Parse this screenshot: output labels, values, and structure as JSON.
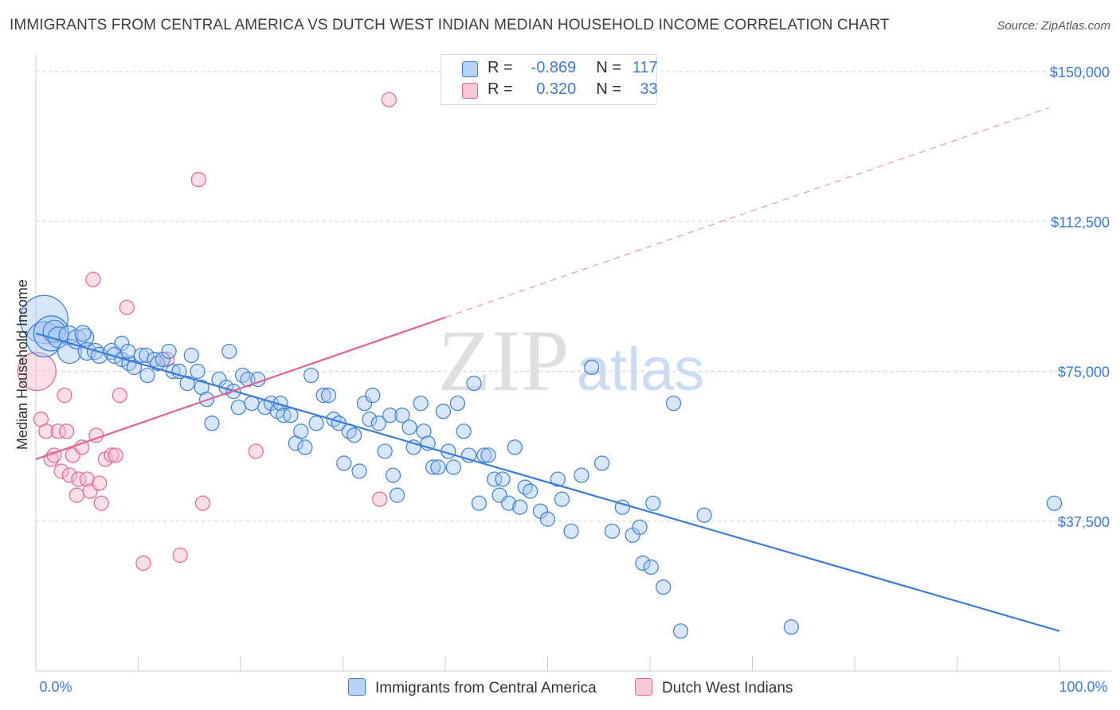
{
  "title": "IMMIGRANTS FROM CENTRAL AMERICA VS DUTCH WEST INDIAN MEDIAN HOUSEHOLD INCOME CORRELATION CHART",
  "source": "Source: ZipAtlas.com",
  "watermark": {
    "zip": "ZIP",
    "atlas": "atlas"
  },
  "colors": {
    "blue": "#3b7dd8",
    "blue_fill": "#a9c8f2",
    "pink": "#e3648f",
    "pink_fill": "#f5b8cb",
    "axis_label": "#3b7dd8",
    "grid": "#cfcfcf"
  },
  "legend": {
    "rows": [
      {
        "r_label": "R =",
        "r_value": "-0.869",
        "n_label": "N =",
        "n_value": "117"
      },
      {
        "r_label": "R =",
        "r_value": "0.320",
        "n_label": "N =",
        "n_value": "33"
      }
    ]
  },
  "bottom_legend": {
    "series1": "Immigrants from Central America",
    "series2": "Dutch West Indians"
  },
  "chart_data": {
    "type": "scatter",
    "title": "IMMIGRANTS FROM CENTRAL AMERICA VS DUTCH WEST INDIAN MEDIAN HOUSEHOLD INCOME CORRELATION CHART",
    "xlabel": "",
    "ylabel": "Median Household Income",
    "xlim": [
      0,
      100
    ],
    "ylim": [
      0,
      153000
    ],
    "x_tick_labels": [
      "0.0%",
      "100.0%"
    ],
    "y_ticks": [
      37500,
      75000,
      112500,
      150000
    ],
    "y_tick_labels": [
      "$37,500",
      "$75,000",
      "$112,500",
      "$150,000"
    ],
    "grid": true,
    "legend_position": "top-center",
    "series": [
      {
        "name": "Immigrants from Central America",
        "color": "#3b7dd8",
        "R": -0.869,
        "N": 117,
        "trend": {
          "x": [
            0,
            100
          ],
          "y": [
            84500,
            10000
          ]
        },
        "points": [
          [
            0.8,
            88000,
            30
          ],
          [
            0.8,
            83000,
            22
          ],
          [
            1.5,
            84500,
            22
          ],
          [
            1.8,
            85000,
            14
          ],
          [
            2.2,
            83500,
            13
          ],
          [
            3.2,
            84000,
            12
          ],
          [
            3.3,
            80000,
            15
          ],
          [
            4.0,
            83000,
            12
          ],
          [
            4.8,
            83500,
            11
          ],
          [
            4.6,
            84500,
            10
          ],
          [
            5.0,
            80000,
            11
          ],
          [
            5.8,
            80000,
            10
          ],
          [
            6.2,
            79000,
            10
          ],
          [
            7.4,
            80000,
            10
          ],
          [
            7.7,
            79000,
            10
          ],
          [
            8.4,
            78000,
            9
          ],
          [
            8.4,
            82000,
            9
          ],
          [
            9.1,
            77000,
            9
          ],
          [
            9.0,
            80000,
            9
          ],
          [
            9.6,
            76000,
            9
          ],
          [
            10.3,
            79000,
            9
          ],
          [
            10.8,
            79000,
            9
          ],
          [
            10.9,
            74000,
            9
          ],
          [
            11.6,
            78000,
            9
          ],
          [
            11.9,
            77000,
            9
          ],
          [
            12.4,
            78000,
            9
          ],
          [
            13.0,
            80000,
            9
          ],
          [
            13.4,
            75000,
            9
          ],
          [
            14.0,
            75000,
            9
          ],
          [
            14.8,
            72000,
            9
          ],
          [
            15.2,
            79000,
            9
          ],
          [
            15.8,
            75000,
            9
          ],
          [
            16.2,
            71000,
            9
          ],
          [
            16.7,
            68000,
            9
          ],
          [
            17.2,
            62000,
            9
          ],
          [
            17.9,
            73000,
            9
          ],
          [
            18.6,
            71000,
            9
          ],
          [
            18.9,
            80000,
            9
          ],
          [
            19.3,
            70000,
            9
          ],
          [
            19.8,
            66000,
            9
          ],
          [
            20.2,
            74000,
            9
          ],
          [
            20.7,
            73000,
            9
          ],
          [
            21.1,
            67000,
            9
          ],
          [
            21.7,
            73000,
            9
          ],
          [
            22.4,
            66000,
            9
          ],
          [
            23.0,
            67000,
            9
          ],
          [
            23.6,
            65000,
            9
          ],
          [
            23.9,
            67000,
            9
          ],
          [
            24.2,
            64000,
            9
          ],
          [
            24.9,
            64000,
            9
          ],
          [
            25.4,
            57000,
            9
          ],
          [
            25.9,
            60000,
            9
          ],
          [
            26.3,
            56000,
            9
          ],
          [
            26.9,
            74000,
            9
          ],
          [
            27.4,
            62000,
            9
          ],
          [
            28.1,
            69000,
            9
          ],
          [
            28.6,
            69000,
            9
          ],
          [
            29.1,
            63000,
            9
          ],
          [
            29.6,
            62000,
            9
          ],
          [
            30.1,
            52000,
            9
          ],
          [
            30.6,
            60000,
            9
          ],
          [
            31.1,
            59000,
            9
          ],
          [
            31.6,
            50000,
            9
          ],
          [
            32.1,
            67000,
            9
          ],
          [
            32.6,
            63000,
            9
          ],
          [
            32.9,
            69000,
            9
          ],
          [
            33.5,
            62000,
            9
          ],
          [
            34.1,
            55000,
            9
          ],
          [
            34.6,
            64000,
            9
          ],
          [
            34.9,
            49000,
            9
          ],
          [
            35.3,
            44000,
            9
          ],
          [
            35.8,
            64000,
            9
          ],
          [
            36.5,
            61000,
            9
          ],
          [
            36.9,
            56000,
            9
          ],
          [
            37.6,
            67000,
            9
          ],
          [
            37.9,
            60000,
            9
          ],
          [
            38.3,
            57000,
            9
          ],
          [
            38.8,
            51000,
            9
          ],
          [
            39.3,
            51000,
            9
          ],
          [
            39.8,
            65000,
            9
          ],
          [
            40.3,
            55000,
            9
          ],
          [
            40.8,
            51000,
            9
          ],
          [
            41.2,
            67000,
            9
          ],
          [
            41.8,
            60000,
            9
          ],
          [
            42.3,
            54000,
            9
          ],
          [
            42.8,
            72000,
            9
          ],
          [
            43.3,
            42000,
            9
          ],
          [
            43.8,
            54000,
            9
          ],
          [
            44.2,
            54000,
            9
          ],
          [
            44.8,
            48000,
            9
          ],
          [
            45.3,
            44000,
            9
          ],
          [
            45.6,
            48000,
            9
          ],
          [
            46.2,
            42000,
            9
          ],
          [
            46.8,
            56000,
            9
          ],
          [
            47.3,
            41000,
            9
          ],
          [
            47.8,
            46000,
            9
          ],
          [
            48.3,
            45000,
            9
          ],
          [
            49.3,
            40000,
            9
          ],
          [
            50.0,
            38000,
            9
          ],
          [
            51.0,
            48000,
            9
          ],
          [
            51.4,
            43000,
            9
          ],
          [
            52.3,
            35000,
            9
          ],
          [
            53.3,
            49000,
            9
          ],
          [
            54.3,
            76000,
            9
          ],
          [
            55.3,
            52000,
            9
          ],
          [
            56.3,
            35000,
            9
          ],
          [
            57.3,
            41000,
            9
          ],
          [
            58.3,
            34000,
            9
          ],
          [
            59.0,
            36000,
            9
          ],
          [
            59.3,
            27000,
            9
          ],
          [
            60.1,
            26000,
            9
          ],
          [
            60.3,
            42000,
            9
          ],
          [
            61.3,
            21000,
            9
          ],
          [
            62.3,
            67000,
            9
          ],
          [
            63.0,
            10000,
            9
          ],
          [
            65.3,
            39000,
            9
          ],
          [
            73.8,
            11000,
            9
          ],
          [
            99.5,
            42000,
            9
          ]
        ]
      },
      {
        "name": "Dutch West Indians",
        "color": "#e3648f",
        "R": 0.32,
        "N": 33,
        "trend": {
          "x": [
            0,
            40
          ],
          "y": [
            53000,
            88500
          ]
        },
        "trend_dashed": {
          "x": [
            40,
            99
          ],
          "y": [
            88500,
            141000
          ]
        },
        "points": [
          [
            0.1,
            75000,
            24
          ],
          [
            0.5,
            63000,
            9
          ],
          [
            1.0,
            60000,
            9
          ],
          [
            1.5,
            53000,
            9
          ],
          [
            1.8,
            54000,
            9
          ],
          [
            2.2,
            60000,
            9
          ],
          [
            2.5,
            50000,
            9
          ],
          [
            2.8,
            69000,
            9
          ],
          [
            3.0,
            60000,
            9
          ],
          [
            3.3,
            49000,
            9
          ],
          [
            3.6,
            54000,
            9
          ],
          [
            4.0,
            44000,
            9
          ],
          [
            4.2,
            48000,
            9
          ],
          [
            4.5,
            56000,
            9
          ],
          [
            5.0,
            48000,
            9
          ],
          [
            5.3,
            45000,
            9
          ],
          [
            5.6,
            98000,
            9
          ],
          [
            5.9,
            59000,
            9
          ],
          [
            6.2,
            47000,
            9
          ],
          [
            6.4,
            42000,
            9
          ],
          [
            6.8,
            53000,
            9
          ],
          [
            7.4,
            54000,
            9
          ],
          [
            7.8,
            54000,
            9
          ],
          [
            8.2,
            69000,
            9
          ],
          [
            8.9,
            91000,
            9
          ],
          [
            10.5,
            27000,
            9
          ],
          [
            12.8,
            78000,
            9
          ],
          [
            14.1,
            29000,
            9
          ],
          [
            15.9,
            123000,
            9
          ],
          [
            16.3,
            42000,
            9
          ],
          [
            21.5,
            55000,
            9
          ],
          [
            33.6,
            43000,
            9
          ],
          [
            34.5,
            143000,
            9
          ]
        ]
      }
    ]
  }
}
